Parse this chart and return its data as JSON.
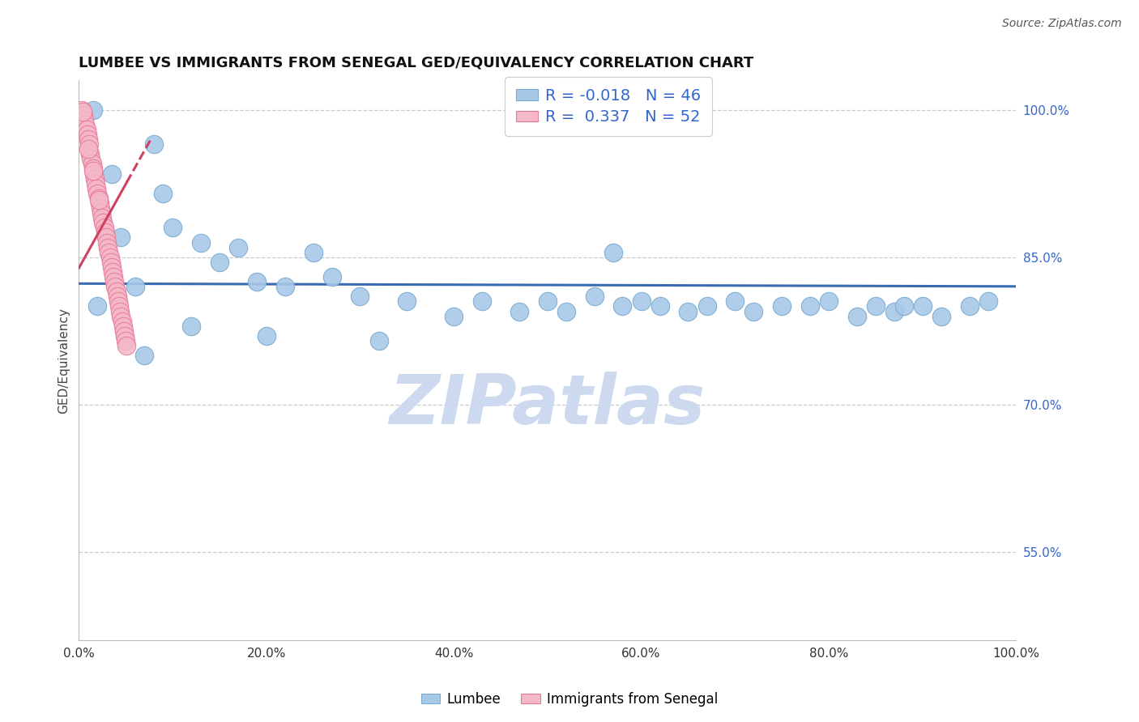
{
  "title": "LUMBEE VS IMMIGRANTS FROM SENEGAL GED/EQUIVALENCY CORRELATION CHART",
  "source": "Source: ZipAtlas.com",
  "xlabel": "",
  "ylabel": "GED/Equivalency",
  "xmin": 0.0,
  "xmax": 100.0,
  "ymin": 46.0,
  "ymax": 103.0,
  "yticks": [
    55.0,
    70.0,
    85.0,
    100.0
  ],
  "xticks": [
    0.0,
    20.0,
    40.0,
    60.0,
    80.0,
    100.0
  ],
  "blue_color": "#a8c8e8",
  "pink_color": "#f4b8c8",
  "blue_edge": "#7aaacf",
  "pink_edge": "#e87898",
  "trendline_blue": "#3a6ab0",
  "trendline_pink": "#d04060",
  "legend_R_blue": "-0.018",
  "legend_N_blue": "46",
  "legend_R_pink": "0.337",
  "legend_N_pink": "52",
  "blue_x": [
    1.5,
    3.5,
    8.0,
    9.0,
    2.0,
    4.5,
    6.0,
    10.0,
    13.0,
    15.0,
    17.0,
    19.0,
    22.0,
    25.0,
    27.0,
    30.0,
    35.0,
    40.0,
    43.0,
    47.0,
    50.0,
    52.0,
    55.0,
    58.0,
    60.0,
    62.0,
    65.0,
    67.0,
    70.0,
    72.0,
    75.0,
    78.0,
    80.0,
    83.0,
    85.0,
    87.0,
    90.0,
    92.0,
    95.0,
    97.0,
    7.0,
    12.0,
    20.0,
    32.0,
    57.0,
    88.0
  ],
  "blue_y": [
    100.0,
    93.5,
    96.5,
    91.5,
    80.0,
    87.0,
    82.0,
    88.0,
    86.5,
    84.5,
    86.0,
    82.5,
    82.0,
    85.5,
    83.0,
    81.0,
    80.5,
    79.0,
    80.5,
    79.5,
    80.5,
    79.5,
    81.0,
    80.0,
    80.5,
    80.0,
    79.5,
    80.0,
    80.5,
    79.5,
    80.0,
    80.0,
    80.5,
    79.0,
    80.0,
    79.5,
    80.0,
    79.0,
    80.0,
    80.5,
    75.0,
    78.0,
    77.0,
    76.5,
    85.5,
    80.0
  ],
  "pink_x": [
    0.3,
    0.5,
    0.6,
    0.7,
    0.8,
    0.9,
    1.0,
    1.1,
    1.2,
    1.3,
    1.4,
    1.5,
    1.6,
    1.7,
    1.8,
    1.9,
    2.0,
    2.1,
    2.2,
    2.3,
    2.4,
    2.5,
    2.6,
    2.7,
    2.8,
    2.9,
    3.0,
    3.1,
    3.2,
    3.3,
    3.4,
    3.5,
    3.6,
    3.7,
    3.8,
    3.9,
    4.0,
    4.1,
    4.2,
    4.3,
    4.4,
    4.5,
    4.6,
    4.7,
    4.8,
    4.9,
    5.0,
    5.1,
    0.4,
    1.05,
    1.55,
    2.15
  ],
  "pink_y": [
    100.0,
    99.5,
    99.0,
    98.5,
    98.0,
    97.5,
    97.0,
    96.5,
    95.5,
    95.0,
    94.5,
    94.0,
    93.5,
    93.0,
    92.5,
    92.0,
    91.5,
    91.0,
    90.5,
    90.0,
    89.5,
    89.0,
    88.5,
    88.0,
    87.5,
    87.0,
    86.5,
    86.0,
    85.5,
    85.0,
    84.5,
    84.0,
    83.5,
    83.0,
    82.5,
    82.0,
    81.5,
    81.0,
    80.5,
    80.0,
    79.5,
    79.0,
    78.5,
    78.0,
    77.5,
    77.0,
    76.5,
    76.0,
    99.8,
    96.0,
    93.8,
    90.8
  ],
  "background_color": "#ffffff",
  "grid_color": "#cccccc",
  "watermark": "ZIPatlas",
  "watermark_color": "#ccd9ee"
}
